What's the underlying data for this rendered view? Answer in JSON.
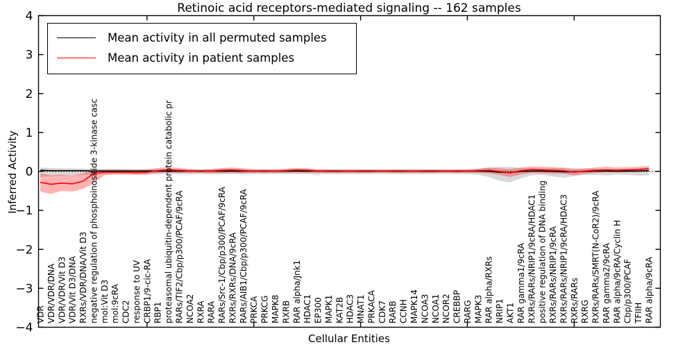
{
  "figure": {
    "title": "Retinoic acid receptors-mediated signaling -- 162 samples",
    "xlabel": "Cellular Entities",
    "ylabel": "Inferred Activity"
  },
  "legend": {
    "items": [
      {
        "label": "Mean activity in all permuted samples",
        "color": "#000000"
      },
      {
        "label": "Mean activity in patient samples",
        "color": "#ff0000"
      }
    ]
  },
  "colors": {
    "patient_line": "#ff0000",
    "patient_band": "#ff0000",
    "permuted_line": "#000000",
    "permuted_band": "#aaaaaa",
    "zero_line": "#000000",
    "frame": "#000000"
  },
  "chart_data": {
    "type": "line",
    "title": "Retinoic acid receptors-mediated signaling -- 162 samples",
    "xlabel": "Cellular Entities",
    "ylabel": "Inferred Activity",
    "ylim": [
      -4,
      4
    ],
    "ytick_labels": [
      "−4",
      "−3",
      "−2",
      "−1",
      "0",
      "1",
      "2",
      "3",
      "4"
    ],
    "ytick_values": [
      -4,
      -3,
      -2,
      -1,
      0,
      1,
      2,
      3,
      4
    ],
    "xtick_indices": [
      10,
      20,
      30,
      40,
      50
    ],
    "grid": false,
    "legend_position": "upper left",
    "categories": [
      "VDR",
      "VDR/VDR/DNA",
      "VDR/VDR/Vit D3",
      "VDR/Vit D3/DNA",
      "RXRs/VDR/DNA/Vit D3",
      "negative regulation of phosphoinositide 3-kinase casc",
      "mol:Vit D3",
      "mol:9cRA",
      "CDC2",
      "response to UV",
      "CRBP1/9-cic-RA",
      "RBP1",
      "proteasomal ubiquitin-dependent protein catabolic pr",
      "RARs/TIF2/Cbp/p300/PCAF/9cRA",
      "NCOA2",
      "RXRA",
      "RARA",
      "RARs/Src-1/Cbp/p300/PCAF/9cRA",
      "RXRs/RXRs/DNA/9cRA",
      "RARs/AIB1/Cbp/p300/PCAF/9cRA",
      "PRKCA",
      "PRKCG",
      "MAPK8",
      "RXRB",
      "RAR alpha/Jnk1",
      "HDAC1",
      "EP300",
      "MAPK1",
      "KAT2B",
      "HDAC3",
      "MNAT1",
      "PRKACA",
      "CDK7",
      "RARB",
      "CCNH",
      "MAPK14",
      "NCOA3",
      "NCOA1",
      "NCOR2",
      "CREBBP",
      "RARG",
      "MAPK3",
      "RAR alpha/RXRs",
      "NRIP1",
      "AKT1",
      "RAR gamma1/9cRA",
      "RXRs/RARs/NRIP1/9cRA/HDAC1",
      "positive regulation of DNA binding",
      "RXRs/RARs/NRIP1/9cRA",
      "RXRs/RARs/NRIP1/9cRA/HDAC3",
      "RXRs/RARs",
      "RXRG",
      "RXRs/RARs/SMRT(N-CoR2)/9cRA",
      "RAR gamma2/9cRA",
      "RAR alpha/9cRA/Cyclin H",
      "Cbp/p300/PCAF",
      "TFIIH",
      "RAR alpha/9cRA"
    ],
    "series": [
      {
        "name": "Mean activity in all permuted samples",
        "values": [
          0.03,
          0.02,
          0.02,
          0.02,
          0.02,
          0.01,
          0.01,
          0.01,
          0.01,
          0.01,
          0.01,
          0.01,
          0.01,
          0.01,
          0.01,
          0.01,
          0.01,
          0.01,
          0.01,
          0.01,
          0.01,
          0.01,
          0.01,
          0.01,
          0.01,
          0.01,
          0.01,
          0.01,
          0.01,
          0.01,
          0.01,
          0.01,
          0.01,
          0.01,
          0.01,
          0.01,
          0.01,
          0.01,
          0.01,
          0.01,
          0.01,
          0.01,
          0.0,
          -0.02,
          -0.03,
          0.0,
          0.01,
          0.01,
          0.0,
          -0.01,
          -0.01,
          0.0,
          0.01,
          0.01,
          0.01,
          0.01,
          0.01,
          0.02
        ],
        "band_upper": [
          0.1,
          0.09,
          0.08,
          0.08,
          0.07,
          0.06,
          0.06,
          0.06,
          0.06,
          0.06,
          0.06,
          0.06,
          0.06,
          0.06,
          0.06,
          0.06,
          0.06,
          0.06,
          0.06,
          0.06,
          0.06,
          0.06,
          0.06,
          0.06,
          0.06,
          0.06,
          0.06,
          0.06,
          0.06,
          0.06,
          0.06,
          0.06,
          0.06,
          0.06,
          0.06,
          0.06,
          0.06,
          0.06,
          0.06,
          0.06,
          0.06,
          0.07,
          0.1,
          0.12,
          0.12,
          0.09,
          0.08,
          0.07,
          0.09,
          0.1,
          0.08,
          0.07,
          0.07,
          0.06,
          0.06,
          0.06,
          0.06,
          0.07
        ],
        "band_lower": [
          -0.14,
          -0.12,
          -0.11,
          -0.1,
          -0.09,
          -0.08,
          -0.07,
          -0.07,
          -0.07,
          -0.07,
          -0.07,
          -0.07,
          -0.07,
          -0.07,
          -0.07,
          -0.07,
          -0.07,
          -0.07,
          -0.07,
          -0.07,
          -0.07,
          -0.07,
          -0.07,
          -0.07,
          -0.07,
          -0.07,
          -0.07,
          -0.07,
          -0.07,
          -0.07,
          -0.07,
          -0.07,
          -0.07,
          -0.07,
          -0.07,
          -0.07,
          -0.07,
          -0.07,
          -0.07,
          -0.07,
          -0.07,
          -0.08,
          -0.14,
          -0.24,
          -0.28,
          -0.18,
          -0.1,
          -0.09,
          -0.13,
          -0.16,
          -0.12,
          -0.09,
          -0.09,
          -0.1,
          -0.08,
          -0.09,
          -0.11,
          -0.1
        ]
      },
      {
        "name": "Mean activity in patient samples",
        "values": [
          -0.28,
          -0.33,
          -0.3,
          -0.32,
          -0.25,
          -0.06,
          -0.02,
          -0.02,
          -0.02,
          -0.03,
          -0.02,
          0.02,
          0.04,
          0.03,
          0.01,
          0.0,
          0.01,
          0.03,
          0.04,
          0.02,
          0.01,
          0.0,
          0.01,
          0.02,
          0.04,
          0.03,
          0.01,
          0.0,
          0.0,
          0.01,
          0.0,
          0.0,
          0.01,
          0.0,
          0.0,
          0.01,
          0.0,
          0.0,
          0.01,
          0.0,
          0.01,
          0.02,
          0.03,
          0.0,
          -0.04,
          0.02,
          0.05,
          0.04,
          0.03,
          0.02,
          -0.02,
          0.01,
          0.03,
          0.04,
          0.03,
          0.04,
          0.05,
          0.07
        ],
        "band_upper": [
          -0.05,
          -0.1,
          -0.08,
          -0.1,
          -0.05,
          0.04,
          0.05,
          0.05,
          0.05,
          0.04,
          0.05,
          0.09,
          0.11,
          0.09,
          0.06,
          0.04,
          0.06,
          0.09,
          0.1,
          0.08,
          0.05,
          0.04,
          0.05,
          0.07,
          0.09,
          0.08,
          0.05,
          0.04,
          0.04,
          0.04,
          0.04,
          0.04,
          0.04,
          0.04,
          0.04,
          0.04,
          0.04,
          0.04,
          0.04,
          0.04,
          0.05,
          0.07,
          0.1,
          0.08,
          0.06,
          0.1,
          0.13,
          0.12,
          0.11,
          0.09,
          0.06,
          0.08,
          0.1,
          0.12,
          0.1,
          0.11,
          0.12,
          0.14
        ],
        "band_lower": [
          -0.52,
          -0.58,
          -0.5,
          -0.52,
          -0.45,
          -0.3,
          -0.1,
          -0.08,
          -0.08,
          -0.09,
          -0.08,
          -0.04,
          -0.03,
          -0.04,
          -0.04,
          -0.04,
          -0.05,
          -0.05,
          -0.04,
          -0.05,
          -0.04,
          -0.04,
          -0.04,
          -0.04,
          -0.03,
          -0.04,
          -0.04,
          -0.04,
          -0.04,
          -0.04,
          -0.04,
          -0.04,
          -0.03,
          -0.04,
          -0.04,
          -0.04,
          -0.04,
          -0.04,
          -0.03,
          -0.04,
          -0.04,
          -0.04,
          -0.05,
          -0.09,
          -0.14,
          -0.08,
          -0.04,
          -0.05,
          -0.06,
          -0.06,
          -0.1,
          -0.06,
          -0.04,
          -0.02,
          -0.03,
          -0.02,
          -0.01,
          0.0
        ]
      }
    ],
    "zero_line": 0
  }
}
